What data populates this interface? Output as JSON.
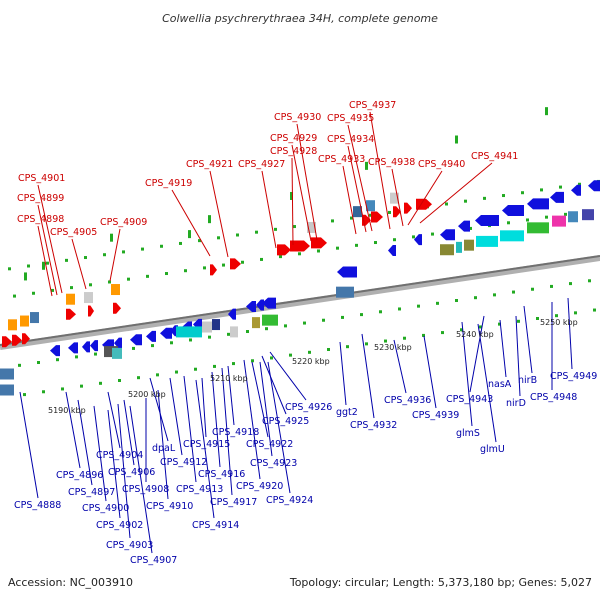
{
  "title": "Colwellia psychrerythraea 34H, complete genome",
  "footer": {
    "accession": "Accession: NC_003910",
    "summary": "Topology: circular; Length: 5,373,180 bp; Genes: 5,027"
  },
  "colors": {
    "forward_label": "#cc0000",
    "reverse_label": "#0000aa",
    "axis": "#808080",
    "tick": "#22aa22"
  },
  "scale": {
    "unit": "kbp",
    "ticks": [
      "5190 kbp",
      "5200 kbp",
      "5210 kbp",
      "5220 kbp",
      "5230 kbp",
      "5240 kbp",
      "5250 kbp"
    ]
  },
  "forward_genes": [
    "CPS_4901",
    "CPS_4899",
    "CPS_4898",
    "CPS_4905",
    "CPS_4909",
    "CPS_4919",
    "CPS_4921",
    "CPS_4927",
    "CPS_4928",
    "CPS_4929",
    "CPS_4930",
    "CPS_4933",
    "CPS_4934",
    "CPS_4935",
    "CPS_4937",
    "CPS_4938",
    "CPS_4940",
    "CPS_4941"
  ],
  "reverse_genes": [
    "CPS_4888",
    "CPS_4896",
    "CPS_4897",
    "CPS_4900",
    "CPS_4902",
    "CPS_4903",
    "CPS_4904",
    "CPS_4906",
    "CPS_4907",
    "CPS_4908",
    "dpaL",
    "CPS_4910",
    "CPS_4912",
    "CPS_4913",
    "CPS_4914",
    "CPS_4915",
    "CPS_4916",
    "CPS_4917",
    "CPS_4918",
    "CPS_4920",
    "CPS_4922",
    "CPS_4923",
    "CPS_4924",
    "CPS_4925",
    "CPS_4926",
    "ggt2",
    "CPS_4932",
    "CPS_4936",
    "CPS_4939",
    "glmS",
    "glmU",
    "CPS_4943",
    "nasA",
    "nirD",
    "nirB",
    "CPS_4948",
    "CPS_4949"
  ]
}
